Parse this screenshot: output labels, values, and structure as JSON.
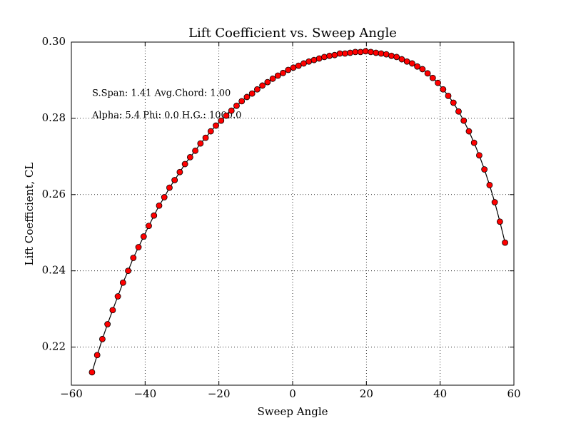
{
  "chart_data": {
    "type": "line",
    "title": "Lift Coefficient vs. Sweep Angle",
    "x_label": "Sweep Angle",
    "y_label": "Lift Coefficient, CL",
    "annotations": [
      "S.Span: 1.41 Avg.Chord: 1.00",
      "Alpha:  5.4 Phi:  0.0 H.G.: 1000.0"
    ],
    "x": [
      -54.4,
      -53,
      -51.6,
      -50.2,
      -48.8,
      -47.4,
      -46,
      -44.6,
      -43.2,
      -41.8,
      -40.4,
      -39,
      -37.6,
      -36.2,
      -34.8,
      -33.4,
      -32,
      -30.6,
      -29.2,
      -27.8,
      -26.4,
      -25,
      -23.6,
      -22.2,
      -20.8,
      -19.4,
      -18,
      -16.6,
      -15.2,
      -13.8,
      -12.4,
      -11,
      -9.6,
      -8.2,
      -6.8,
      -5.4,
      -4,
      -2.6,
      -1.2,
      0.2,
      1.6,
      3,
      4.4,
      5.8,
      7.2,
      8.6,
      10,
      11.4,
      12.8,
      14.2,
      15.6,
      17,
      18.4,
      19.8,
      21.2,
      22.6,
      24,
      25.4,
      26.8,
      28.2,
      29.6,
      31,
      32.4,
      33.8,
      35.2,
      36.6,
      38,
      39.4,
      40.8,
      42.2,
      43.6,
      45,
      46.4,
      47.8,
      49.2,
      50.6,
      52,
      53.4,
      54.8,
      56.2,
      57.6
    ],
    "series": [
      {
        "color": "#ff0000",
        "line_color": "#000000",
        "values": [
          0.2134,
          0.2179,
          0.2221,
          0.226,
          0.2297,
          0.2333,
          0.2369,
          0.24,
          0.2434,
          0.2462,
          0.249,
          0.2518,
          0.2545,
          0.2571,
          0.2593,
          0.2618,
          0.2638,
          0.2659,
          0.268,
          0.2698,
          0.2715,
          0.2734,
          0.2749,
          0.2766,
          0.2781,
          0.2794,
          0.2807,
          0.282,
          0.2833,
          0.2845,
          0.2856,
          0.2865,
          0.2876,
          0.2886,
          0.2895,
          0.2904,
          0.2912,
          0.2919,
          0.2927,
          0.2933,
          0.2938,
          0.2944,
          0.2949,
          0.2953,
          0.2957,
          0.2961,
          0.2964,
          0.2966,
          0.297,
          0.297,
          0.2972,
          0.2974,
          0.2974,
          0.2976,
          0.2974,
          0.2972,
          0.297,
          0.2968,
          0.2964,
          0.2961,
          0.2955,
          0.2949,
          0.2944,
          0.2936,
          0.2929,
          0.2918,
          0.2906,
          0.2893,
          0.2876,
          0.2859,
          0.2841,
          0.2818,
          0.2794,
          0.2766,
          0.2736,
          0.2703,
          0.2666,
          0.2625,
          0.258,
          0.2529,
          0.2474
        ]
      }
    ],
    "xlim": [
      -60,
      60
    ],
    "xticks": [
      {
        "value": -60,
        "label": "−60"
      },
      {
        "value": -40,
        "label": "−40"
      },
      {
        "value": -20,
        "label": "−20"
      },
      0,
      20,
      40,
      60
    ],
    "ylim": [
      0.21,
      0.3
    ],
    "yticks": [
      0.22,
      0.24,
      0.26,
      0.28,
      {
        "value": 0.3,
        "label": "0.30"
      }
    ],
    "grid": true
  }
}
